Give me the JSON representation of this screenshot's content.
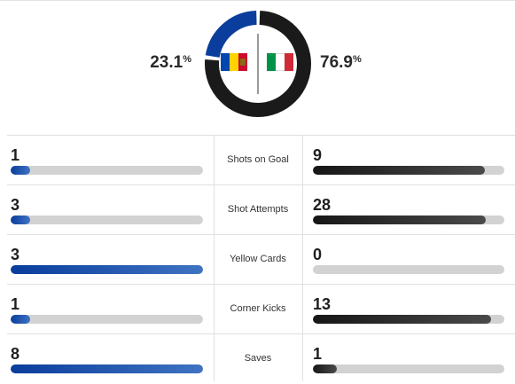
{
  "possession": {
    "home_pct": "23.1",
    "away_pct": "76.9",
    "pct_symbol": "%",
    "home_share": 0.231,
    "away_share": 0.769,
    "home_flag": "moldova-flag",
    "away_flag": "italy-flag"
  },
  "colors": {
    "home": "#0a3d9c",
    "home_light": "#3f73c2",
    "away": "#1a1a1a",
    "away_light": "#4a4a4a",
    "track": "#d2d2d2"
  },
  "stats": [
    {
      "label": "Shots on Goal",
      "home": "1",
      "away": "9",
      "home_fill": 0.1,
      "away_fill": 0.9
    },
    {
      "label": "Shot Attempts",
      "home": "3",
      "away": "28",
      "home_fill": 0.097,
      "away_fill": 0.903
    },
    {
      "label": "Yellow Cards",
      "home": "3",
      "away": "0",
      "home_fill": 1.0,
      "away_fill": 0.0
    },
    {
      "label": "Corner Kicks",
      "home": "1",
      "away": "13",
      "home_fill": 0.071,
      "away_fill": 0.929
    },
    {
      "label": "Saves",
      "home": "8",
      "away": "1",
      "home_fill": 1.0,
      "away_fill": 0.125
    }
  ]
}
